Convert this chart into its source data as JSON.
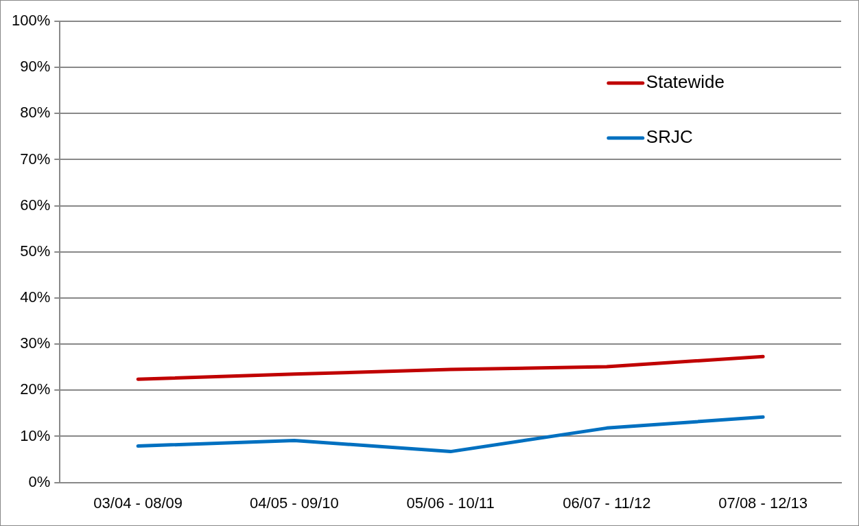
{
  "chart_data": {
    "type": "line",
    "categories": [
      "03/04 - 08/09",
      "04/05 - 09/10",
      "05/06 - 10/11",
      "06/07 - 11/12",
      "07/08 - 12/13"
    ],
    "series": [
      {
        "name": "Statewide",
        "color": "#c00000",
        "values": [
          22.4,
          23.5,
          24.5,
          25.1,
          27.3
        ]
      },
      {
        "name": "SRJC",
        "color": "#0070c0",
        "values": [
          7.9,
          9.1,
          6.7,
          11.8,
          14.2
        ]
      }
    ],
    "ylim": [
      0,
      100
    ],
    "yticks": [
      {
        "value": 0,
        "label": "0%"
      },
      {
        "value": 10,
        "label": "10%"
      },
      {
        "value": 20,
        "label": "20%"
      },
      {
        "value": 30,
        "label": "30%"
      },
      {
        "value": 40,
        "label": "40%"
      },
      {
        "value": 50,
        "label": "50%"
      },
      {
        "value": 60,
        "label": "60%"
      },
      {
        "value": 70,
        "label": "70%"
      },
      {
        "value": 80,
        "label": "80%"
      },
      {
        "value": 90,
        "label": "90%"
      },
      {
        "value": 100,
        "label": "100%"
      }
    ],
    "grid": "y",
    "legend": "top right",
    "marker": "none",
    "line_style": "solid"
  }
}
